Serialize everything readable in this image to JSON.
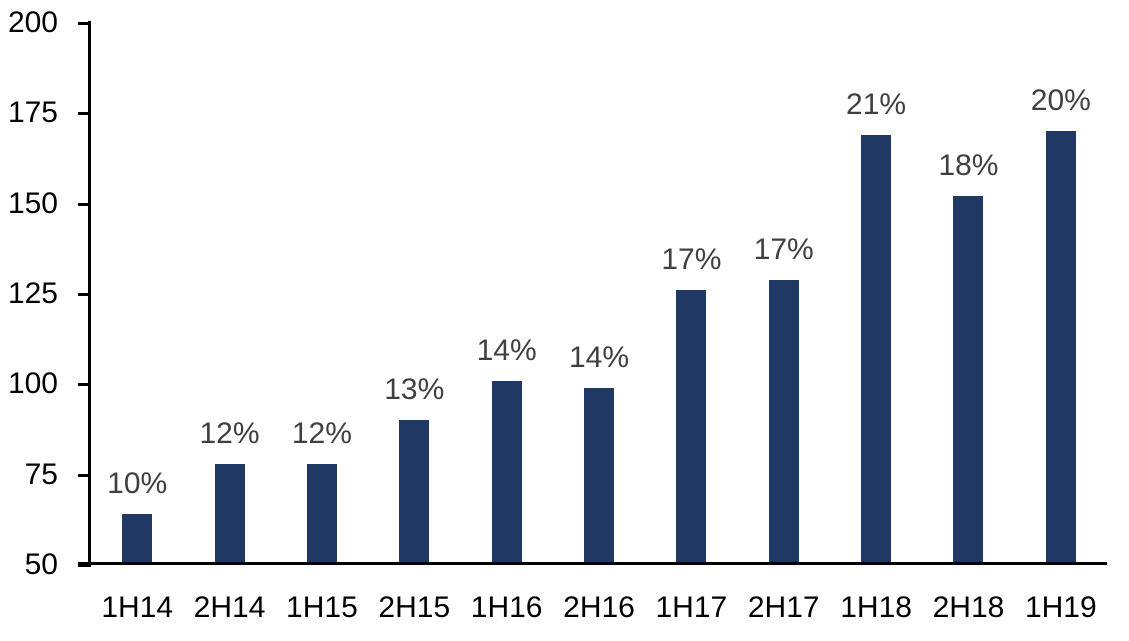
{
  "chart_data": {
    "type": "bar",
    "title": "",
    "xlabel": "",
    "ylabel": "",
    "categories": [
      "1H14",
      "2H14",
      "1H15",
      "2H15",
      "1H16",
      "2H16",
      "1H17",
      "2H17",
      "1H18",
      "2H18",
      "1H19"
    ],
    "values": [
      64,
      78,
      78,
      90,
      101,
      99,
      126,
      129,
      169,
      152,
      170
    ],
    "bar_labels": [
      "10%",
      "12%",
      "12%",
      "13%",
      "14%",
      "14%",
      "17%",
      "17%",
      "21%",
      "18%",
      "20%"
    ],
    "ylim": [
      50,
      200
    ],
    "yticks": [
      200,
      175,
      150,
      125,
      100,
      75,
      50
    ],
    "grid": false,
    "legend": null,
    "colors": {
      "bar": "#1f3864",
      "bar_label": "#404040",
      "axis": "#000000",
      "tick_label": "#000000",
      "background": "#ffffff"
    }
  }
}
